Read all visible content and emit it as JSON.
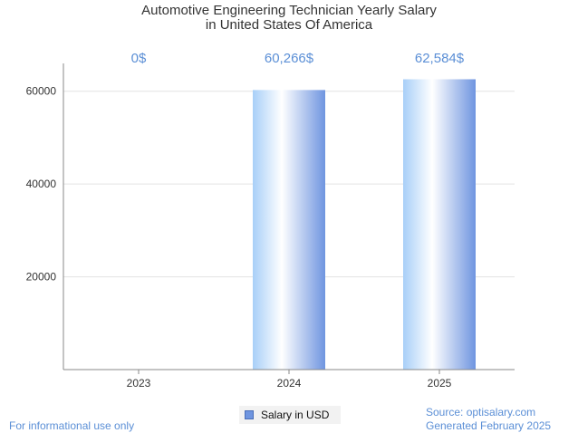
{
  "chart_data": {
    "type": "bar",
    "title_line1": "Automotive Engineering Technician Yearly Salary",
    "title_line2": "in United States Of America",
    "categories": [
      "2023",
      "2024",
      "2025"
    ],
    "series": [
      {
        "name": "Salary in USD",
        "values": [
          0,
          60266,
          62584
        ]
      }
    ],
    "data_labels": [
      "0$",
      "60,266$",
      "62,584$"
    ],
    "y_ticks": [
      20000,
      40000,
      60000
    ],
    "ylim": [
      0,
      66000
    ],
    "grid": true,
    "legend_position": "bottom-center"
  },
  "colors": {
    "accent": "#5b8fd6",
    "bar_light": "#ffffff",
    "bar_mid": "#a8cff8",
    "bar_dark": "#6f95e0"
  },
  "footer": {
    "left_note": "For informational use only",
    "source": "Source: optisalary.com",
    "generated": "Generated February 2025"
  }
}
